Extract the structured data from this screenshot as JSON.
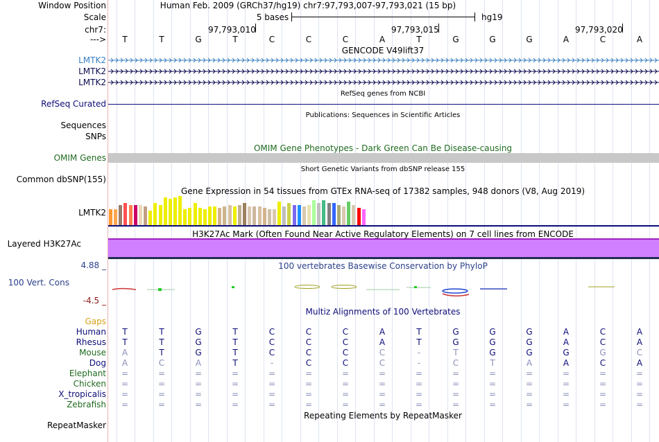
{
  "header": {
    "window_position_label": "Window Position",
    "scale_label": "Scale",
    "chr_label": "chr7:",
    "strand_label": "--->",
    "assembly_position": "Human Feb. 2009 (GRCh37/hg19)   chr7:97,793,007-97,793,021 (15 bp)",
    "scale_text": "5 bases",
    "assembly_short": "hg19",
    "coord_ticks": [
      "97,793,010",
      "97,793,015",
      "97,793,020"
    ],
    "bases": [
      "T",
      "T",
      "G",
      "T",
      "C",
      "C",
      "C",
      "A",
      "T",
      "G",
      "G",
      "G",
      "A",
      "C",
      "A"
    ]
  },
  "gencode": {
    "title": "GENCODE V49lift37",
    "genes": [
      {
        "label": "LMTK2",
        "color": "#3a7fbf"
      },
      {
        "label": "LMTK2",
        "color": "#0a0a50"
      },
      {
        "label": "LMTK2",
        "color": "#0a0a50"
      }
    ]
  },
  "refseq": {
    "title": "RefSeq genes from NCBI",
    "label": "RefSeq Curated",
    "color": "#0c0c78"
  },
  "publications": {
    "title": "Publications: Sequences in Scientific Articles",
    "labels": [
      "Sequences",
      "SNPs"
    ]
  },
  "omim": {
    "title": "OMIM Gene Phenotypes - Dark Green Can Be Disease-causing",
    "label": "OMIM Genes",
    "title_color": "#1f6a1f",
    "bar_color": "#c8c8c8"
  },
  "dbsnp": {
    "title": "Short Genetic Variants from dbSNP release 155",
    "label": "Common dbSNP(155)"
  },
  "gtex": {
    "title": "Gene Expression in 54 tissues from GTEx RNA-seq of 17382 samples, 948 donors (V8, Aug 2019)",
    "label": "LMTK2",
    "bars": [
      {
        "c": "#ff9933",
        "v": 0.55
      },
      {
        "c": "#ffa54f",
        "v": 0.55
      },
      {
        "c": "#9c7c6a",
        "v": 0.7
      },
      {
        "c": "#ff5050",
        "v": 0.75
      },
      {
        "c": "#ff7f50",
        "v": 0.7
      },
      {
        "c": "#cc0066",
        "v": 0.7
      },
      {
        "c": "#e8d8b8",
        "v": 0.7
      },
      {
        "c": "#c0a080",
        "v": 0.65
      },
      {
        "c": "#eeee00",
        "v": 0.5
      },
      {
        "c": "#eeee00",
        "v": 0.75
      },
      {
        "c": "#eeee00",
        "v": 0.7
      },
      {
        "c": "#eeee00",
        "v": 0.95
      },
      {
        "c": "#eeee00",
        "v": 0.9
      },
      {
        "c": "#eeee00",
        "v": 0.95
      },
      {
        "c": "#eeee00",
        "v": 1.0
      },
      {
        "c": "#eeee00",
        "v": 0.55
      },
      {
        "c": "#eeee00",
        "v": 0.6
      },
      {
        "c": "#eeee00",
        "v": 0.75
      },
      {
        "c": "#eeee00",
        "v": 0.6
      },
      {
        "c": "#eeee00",
        "v": 0.55
      },
      {
        "c": "#eeee00",
        "v": 0.65
      },
      {
        "c": "#eeee00",
        "v": 0.65
      },
      {
        "c": "#d2b48c",
        "v": 0.6
      },
      {
        "c": "#cdb38b",
        "v": 0.65
      },
      {
        "c": "#d8c0a0",
        "v": 0.7
      },
      {
        "c": "#eeee00",
        "v": 0.65
      },
      {
        "c": "#c0b090",
        "v": 0.7
      },
      {
        "c": "#9c8060",
        "v": 0.75
      },
      {
        "c": "#d8c8b0",
        "v": 0.65
      },
      {
        "c": "#cdb79e",
        "v": 0.65
      },
      {
        "c": "#d8c0a0",
        "v": 0.65
      },
      {
        "c": "#d2b48c",
        "v": 0.6
      },
      {
        "c": "#d0c0a8",
        "v": 0.55
      },
      {
        "c": "#d8c8b0",
        "v": 0.55
      },
      {
        "c": "#eeee00",
        "v": 0.8
      },
      {
        "c": "#bfbfbf",
        "v": 0.65
      },
      {
        "c": "#ccd04c",
        "v": 0.75
      },
      {
        "c": "#7b68ee",
        "v": 0.7
      },
      {
        "c": "#1e90ff",
        "v": 0.7
      },
      {
        "c": "#d8c8b0",
        "v": 0.65
      },
      {
        "c": "#e8e0b0",
        "v": 0.7
      },
      {
        "c": "#aaff99",
        "v": 0.85
      },
      {
        "c": "#c0c0c0",
        "v": 0.75
      },
      {
        "c": "#44bb88",
        "v": 0.85
      },
      {
        "c": "#808080",
        "v": 0.75
      },
      {
        "c": "#3366ff",
        "v": 0.75
      },
      {
        "c": "#aaaa77",
        "v": 0.7
      },
      {
        "c": "#d8c8b0",
        "v": 0.65
      },
      {
        "c": "#66cc66",
        "v": 0.8
      },
      {
        "c": "#d8c8b0",
        "v": 0.7
      },
      {
        "c": "#ff0000",
        "v": 0.6
      },
      {
        "c": "#ff66ff",
        "v": 0.55
      }
    ]
  },
  "h3k27ac": {
    "title": "H3K27Ac Mark (Often Found Near Active Regulatory Elements) on 7 cell lines from ENCODE",
    "label": "Layered H3K27Ac",
    "fill": "#d080ff",
    "edge": "#a020c0"
  },
  "phylop": {
    "title": "100 vertebrates Basewise Conservation by PhyloP",
    "label": "100 Vert. Cons",
    "max": "4.88 _",
    "min": "-4.5 _",
    "title_color": "#2a3f8a"
  },
  "multiz": {
    "title": "Multiz Alignments of 100 Vertebrates",
    "gaps_label": "Gaps",
    "species": [
      {
        "name": "Human",
        "color": "#0c0c78",
        "seq": [
          "T",
          "T",
          "G",
          "T",
          "C",
          "C",
          "C",
          "A",
          "T",
          "G",
          "G",
          "G",
          "A",
          "C",
          "A"
        ],
        "faint": []
      },
      {
        "name": "Rhesus",
        "color": "#0c0c78",
        "seq": [
          "T",
          "T",
          "G",
          "T",
          "C",
          "C",
          "C",
          "A",
          "T",
          "G",
          "G",
          "G",
          "A",
          "C",
          "A"
        ],
        "faint": []
      },
      {
        "name": "Mouse",
        "color": "#1f6a1f",
        "seq": [
          "A",
          "T",
          "G",
          "T",
          "C",
          "C",
          "C",
          "C",
          "-",
          "T",
          "G",
          "G",
          "G",
          "G",
          "C"
        ],
        "faint": [
          0,
          7,
          8,
          9,
          13,
          14
        ]
      },
      {
        "name": "Dog",
        "color": "#0c0c78",
        "seq": [
          "A",
          "C",
          "A",
          "T",
          "-",
          "C",
          "C",
          "C",
          "-",
          "C",
          "T",
          "A",
          "A",
          "C",
          "A"
        ],
        "faint": [
          0,
          1,
          2,
          4,
          7,
          8,
          9,
          10,
          11
        ]
      },
      {
        "name": "Elephant",
        "color": "#1f6a1f",
        "seq": [
          "=",
          "=",
          "=",
          "=",
          "=",
          "=",
          "=",
          "=",
          "=",
          "=",
          "=",
          "=",
          "=",
          "=",
          "="
        ],
        "faint": "all"
      },
      {
        "name": "Chicken",
        "color": "#1f6a1f",
        "seq": [
          "=",
          "=",
          "=",
          "=",
          "=",
          "=",
          "=",
          "=",
          "=",
          "=",
          "=",
          "=",
          "=",
          "=",
          "="
        ],
        "faint": "all"
      },
      {
        "name": "X_tropicalis",
        "color": "#0c0c78",
        "seq": [
          "=",
          "=",
          "=",
          "=",
          "=",
          "=",
          "=",
          "=",
          "=",
          "=",
          "=",
          "=",
          "=",
          "=",
          "="
        ],
        "faint": "all"
      },
      {
        "name": "Zebrafish",
        "color": "#1f6a1f",
        "seq": [
          "=",
          "=",
          "=",
          "=",
          "=",
          "=",
          "=",
          "=",
          "=",
          "=",
          "=",
          "=",
          "=",
          "=",
          "="
        ],
        "faint": "all"
      }
    ]
  },
  "repeatmasker": {
    "title": "Repeating Elements by RepeatMasker",
    "label": "RepeatMasker"
  }
}
